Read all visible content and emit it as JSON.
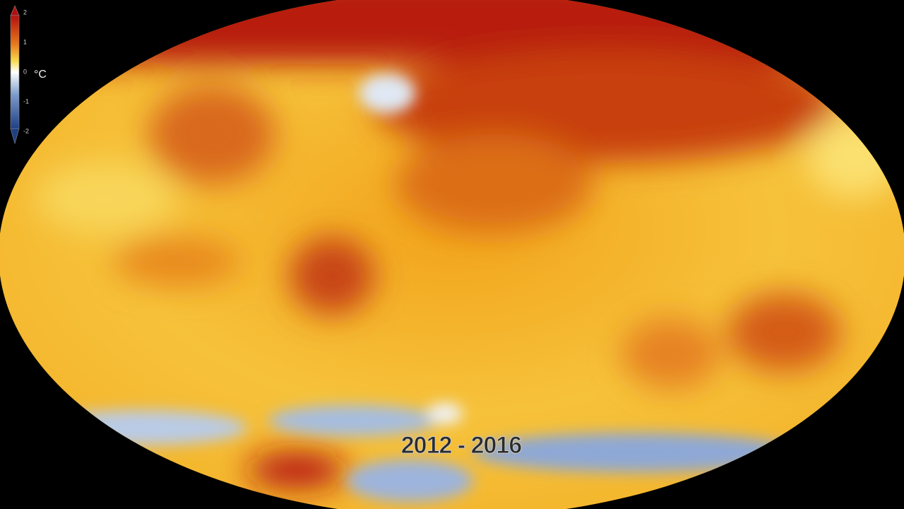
{
  "legend": {
    "unit": "°C",
    "ticks": [
      2,
      1,
      0,
      -1,
      -2
    ]
  },
  "period": "2012 - 2016"
}
